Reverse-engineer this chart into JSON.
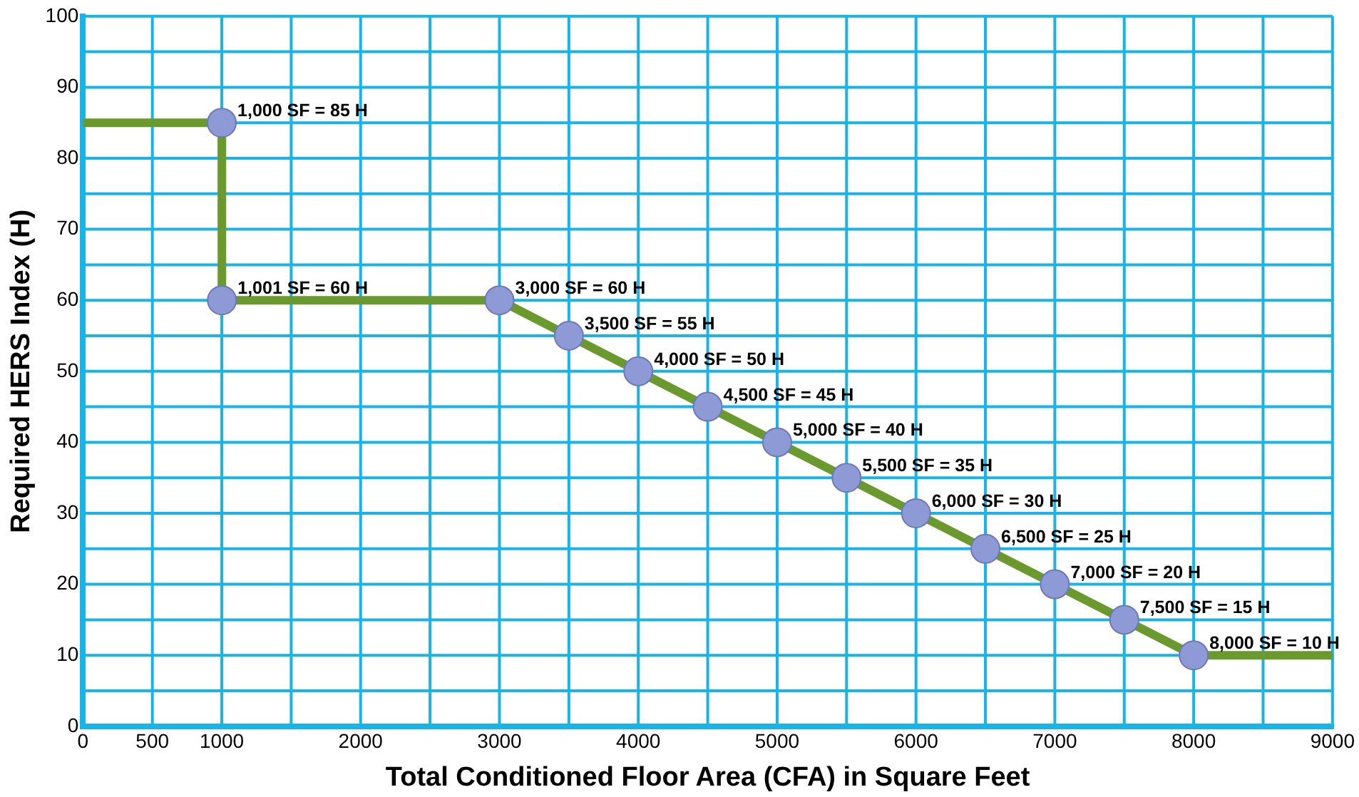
{
  "chart_data": {
    "type": "line",
    "xlabel": "Total Conditioned Floor Area (CFA) in Square Feet",
    "ylabel": "Required HERS Index (H)",
    "x": [
      0,
      1000,
      1001,
      3000,
      3500,
      4000,
      4500,
      5000,
      5500,
      6000,
      6500,
      7000,
      7500,
      8000,
      9000
    ],
    "series": [
      {
        "color": "#6a9a2e",
        "values": [
          85,
          85,
          60,
          60,
          55,
          50,
          45,
          40,
          35,
          30,
          25,
          20,
          15,
          10,
          10
        ],
        "value_labels": [
          null,
          "1,000 SF = 85 H",
          "1,001 SF = 60 H",
          "3,000 SF = 60 H",
          "3,500 SF = 55 H",
          "4,000 SF = 50 H",
          "4,500 SF = 45 H",
          "5,000 SF = 40 H",
          "5,500 SF = 35 H",
          "6,000 SF = 30 H",
          "6,500 SF = 25 H",
          "7,000 SF = 20 H",
          "7,500 SF = 15 H",
          "8,000 SF = 10 H",
          null
        ]
      }
    ],
    "xlim": [
      0,
      9000
    ],
    "xticks": [
      0,
      500,
      1000,
      {
        "value": 1500,
        "label": null
      },
      2000,
      {
        "value": 2500,
        "label": null
      },
      3000,
      {
        "value": 3500,
        "label": null
      },
      4000,
      {
        "value": 4500,
        "label": null
      },
      5000,
      {
        "value": 5500,
        "label": null
      },
      6000,
      {
        "value": 6500,
        "label": null
      },
      7000,
      {
        "value": 7500,
        "label": null
      },
      8000,
      {
        "value": 8500,
        "label": null
      },
      9000
    ],
    "ylim": [
      0,
      100
    ],
    "yticks": [
      0,
      {
        "value": 5,
        "label": null
      },
      10,
      {
        "value": 15,
        "label": null
      },
      20,
      {
        "value": 25,
        "label": null
      },
      30,
      {
        "value": 35,
        "label": null
      },
      40,
      {
        "value": 45,
        "label": null
      },
      50,
      {
        "value": 55,
        "label": null
      },
      60,
      {
        "value": 65,
        "label": null
      },
      70,
      {
        "value": 75,
        "label": null
      },
      80,
      {
        "value": 85,
        "label": null
      },
      90,
      {
        "value": 95,
        "label": null
      },
      100
    ],
    "grid": true,
    "legend": false,
    "marker": "circle",
    "line_style": "solid"
  }
}
